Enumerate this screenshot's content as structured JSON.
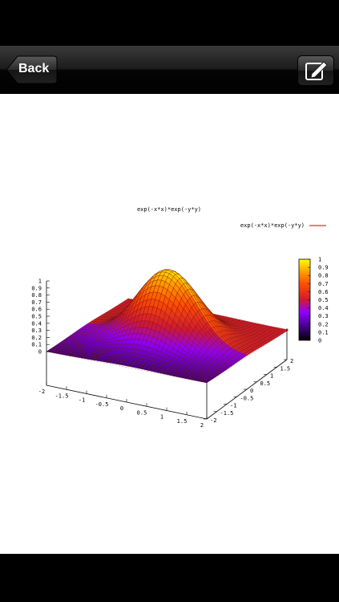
{
  "navbar": {
    "back_label": "Back",
    "edit_icon": "compose-icon"
  },
  "plot": {
    "title": "exp(-x*x)*exp(-y*y)",
    "legend_label": "exp(-x*x)*exp(-y*y)",
    "legend_color": "#cc0000",
    "z_ticks": [
      "1",
      "0.9",
      "0.8",
      "0.7",
      "0.6",
      "0.5",
      "0.4",
      "0.3",
      "0.2",
      "0.1",
      "0"
    ],
    "x_ticks": [
      "-2",
      "-1.5",
      "-1",
      "-0.5",
      "0",
      "0.5",
      "1",
      "1.5",
      "2"
    ],
    "y_ticks": [
      "-2",
      "-1.5",
      "-1",
      "-0.5",
      "0",
      "0.5",
      "1",
      "1.5",
      "2"
    ],
    "colorbar_ticks": [
      "1",
      "0.9",
      "0.8",
      "0.7",
      "0.6",
      "0.5",
      "0.4",
      "0.3",
      "0.2",
      "0.1",
      "0"
    ]
  },
  "chart_data": {
    "type": "surface",
    "function": "exp(-x*x)*exp(-y*y)",
    "xlim": [
      -2,
      2
    ],
    "ylim": [
      -2,
      2
    ],
    "zlim": [
      0,
      1
    ],
    "colormap": [
      "#000000",
      "#5000a0",
      "#9000ff",
      "#d01830",
      "#ff5000",
      "#ffa000",
      "#ffff00"
    ]
  }
}
